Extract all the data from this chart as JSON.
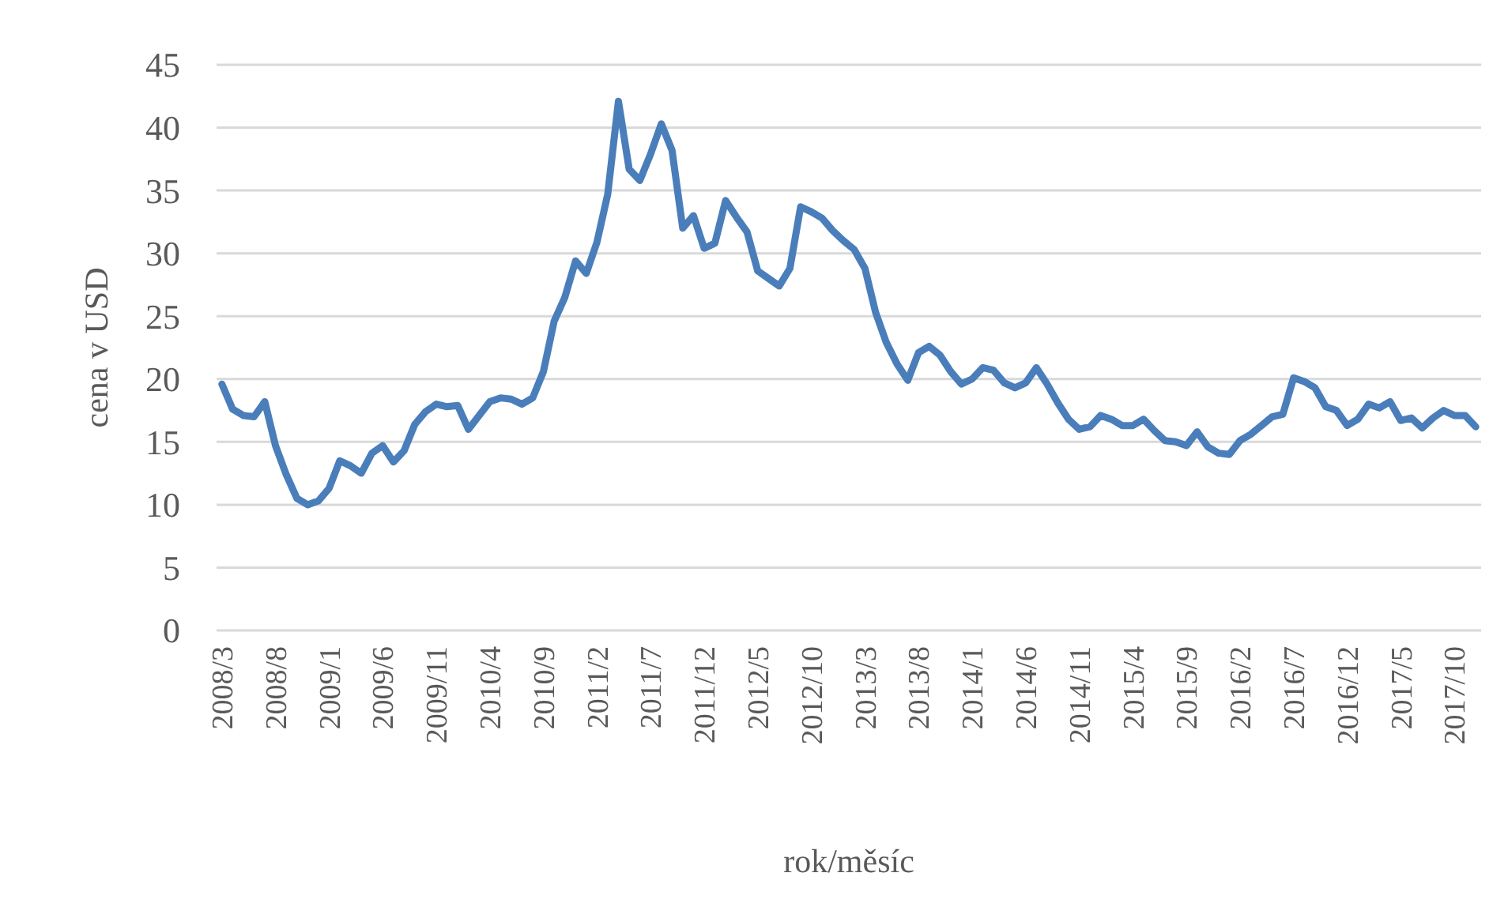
{
  "chart_data": {
    "type": "line",
    "xlabel": "rok/měsíc",
    "ylabel": "cena v USD",
    "categories": [
      "2008/3",
      null,
      null,
      null,
      null,
      "2008/8",
      null,
      null,
      null,
      null,
      "2009/1",
      null,
      null,
      null,
      null,
      "2009/6",
      null,
      null,
      null,
      null,
      "2009/11",
      null,
      null,
      null,
      null,
      "2010/4",
      null,
      null,
      null,
      null,
      "2010/9",
      null,
      null,
      null,
      null,
      "2011/2",
      null,
      null,
      null,
      null,
      "2011/7",
      null,
      null,
      null,
      null,
      "2011/12",
      null,
      null,
      null,
      null,
      "2012/5",
      null,
      null,
      null,
      null,
      "2012/10",
      null,
      null,
      null,
      null,
      "2013/3",
      null,
      null,
      null,
      null,
      "2013/8",
      null,
      null,
      null,
      null,
      "2014/1",
      null,
      null,
      null,
      null,
      "2014/6",
      null,
      null,
      null,
      null,
      "2014/11",
      null,
      null,
      null,
      null,
      "2015/4",
      null,
      null,
      null,
      null,
      "2015/9",
      null,
      null,
      null,
      null,
      "2016/2",
      null,
      null,
      null,
      null,
      "2016/7",
      null,
      null,
      null,
      null,
      "2016/12",
      null,
      null,
      null,
      null,
      "2017/5",
      null,
      null,
      null,
      null,
      "2017/10",
      null,
      null
    ],
    "series": [
      {
        "color": "#4a7ebb",
        "values": [
          19.6,
          17.6,
          17.1,
          17.0,
          18.2,
          14.7,
          12.4,
          10.5,
          10.0,
          10.3,
          11.3,
          13.5,
          13.1,
          12.5,
          14.1,
          14.7,
          13.4,
          14.3,
          16.4,
          17.4,
          18.0,
          17.8,
          17.9,
          16.0,
          17.1,
          18.2,
          18.5,
          18.4,
          18.0,
          18.5,
          20.6,
          24.6,
          26.5,
          29.4,
          28.4,
          30.9,
          34.7,
          42.1,
          36.7,
          35.8,
          37.9,
          40.3,
          38.2,
          32.0,
          33.0,
          30.4,
          30.8,
          34.2,
          32.9,
          31.7,
          28.6,
          28.0,
          27.4,
          28.8,
          33.7,
          33.3,
          32.8,
          31.8,
          31.0,
          30.3,
          28.8,
          25.3,
          22.9,
          21.2,
          19.9,
          22.1,
          22.6,
          21.9,
          20.6,
          19.6,
          20.0,
          20.9,
          20.7,
          19.7,
          19.3,
          19.7,
          20.9,
          19.6,
          18.1,
          16.8,
          16.0,
          16.2,
          17.1,
          16.8,
          16.3,
          16.3,
          16.8,
          15.9,
          15.1,
          15.0,
          14.7,
          15.8,
          14.6,
          14.1,
          14.0,
          15.1,
          15.6,
          16.3,
          17.0,
          17.2,
          20.1,
          19.8,
          19.3,
          17.8,
          17.5,
          16.3,
          16.8,
          18.0,
          17.7,
          18.2,
          16.7,
          16.9,
          16.1,
          16.9,
          17.5,
          17.1,
          17.1,
          16.2
        ]
      }
    ],
    "ylim": [
      0,
      45
    ],
    "yticks": [
      0,
      5,
      10,
      15,
      20,
      25,
      30,
      35,
      40,
      45
    ],
    "grid": "y",
    "marker": "none",
    "line_style": "solid"
  }
}
